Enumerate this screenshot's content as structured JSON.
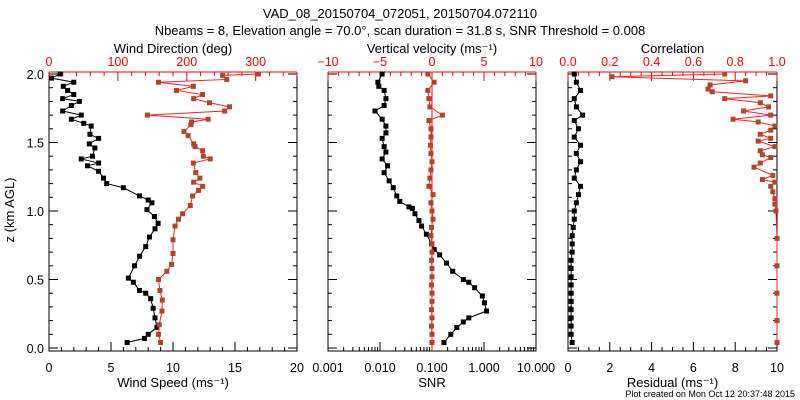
{
  "title": {
    "line1": "VAD_08_20150704_072051, 20150704.072110",
    "line2": "Nbeams = 8, Elevation angle = 70.0°, scan duration = 31.8 s, SNR Threshold = 0.008"
  },
  "footer": "Plot created on Mon Oct 12 20:37:48 2015",
  "y_axis_label": "z (km AGL)",
  "y_ticks": [
    "0.0",
    "0.5",
    "1.0",
    "1.5",
    "2.0"
  ],
  "colors": {
    "primary": "#000000",
    "secondary_axis": "#ff0000",
    "secondary_marker": "#b4432c",
    "secondary_line": "#ff2020"
  },
  "chart_data": [
    {
      "type": "line",
      "xlabel": "Wind Speed (ms⁻¹)",
      "x_ticks": [
        "0",
        "5",
        "10",
        "15",
        "20"
      ],
      "xlim": [
        0,
        20
      ],
      "top_label": "Wind Direction (deg)",
      "top_ticks": [
        "0",
        "100",
        "200",
        "300"
      ],
      "top_lim": [
        0,
        360
      ],
      "ylim": [
        0,
        2.0
      ],
      "series": [
        {
          "name": "Wind Speed",
          "axis": "bottom",
          "z": [
            0.04,
            0.07,
            0.1,
            0.15,
            0.22,
            0.29,
            0.36,
            0.4,
            0.42,
            0.48,
            0.51,
            0.6,
            0.67,
            0.74,
            0.81,
            0.87,
            0.91,
            0.96,
            1.01,
            1.06,
            1.08,
            1.11,
            1.17,
            1.2,
            1.24,
            1.29,
            1.33,
            1.35,
            1.38,
            1.4,
            1.46,
            1.49,
            1.53,
            1.56,
            1.62,
            1.64,
            1.67,
            1.7,
            1.73,
            1.77,
            1.8,
            1.82,
            1.85,
            1.88,
            1.91,
            1.94,
            1.97,
            2.0
          ],
          "values": [
            6.3,
            7.7,
            8.0,
            8.7,
            8.55,
            8.4,
            8.2,
            7.8,
            7.3,
            6.8,
            6.4,
            6.9,
            7.3,
            7.8,
            8.1,
            8.55,
            8.8,
            8.5,
            7.9,
            8.3,
            8.0,
            7.3,
            6.0,
            4.65,
            4.4,
            4.0,
            3.1,
            4.0,
            2.6,
            3.5,
            3.7,
            3.25,
            4.0,
            3.3,
            3.4,
            2.8,
            1.8,
            2.6,
            1.1,
            1.8,
            2.45,
            1.1,
            2.0,
            1.5,
            1.15,
            2.0,
            0.2,
            0.9
          ]
        },
        {
          "name": "Wind Direction",
          "axis": "top",
          "z": [
            0.04,
            0.1,
            0.17,
            0.27,
            0.35,
            0.42,
            0.5,
            0.56,
            0.61,
            0.69,
            0.79,
            0.89,
            0.94,
            0.98,
            1.04,
            1.11,
            1.15,
            1.18,
            1.21,
            1.24,
            1.28,
            1.35,
            1.38,
            1.4,
            1.44,
            1.47,
            1.49,
            1.55,
            1.58,
            1.63,
            1.65,
            1.67,
            1.7,
            1.73,
            1.76,
            1.79,
            1.82,
            1.85,
            1.88,
            1.91,
            1.94,
            1.96,
            1.99,
            2.0
          ],
          "values": [
            162,
            159,
            160,
            164,
            164.5,
            161,
            159,
            171,
            178,
            180,
            180,
            183,
            188,
            194,
            205,
            208.5,
            217,
            223,
            210,
            219,
            213,
            209.5,
            234,
            224,
            223,
            212,
            210,
            202,
            196,
            206,
            207,
            231,
            143,
            255,
            262,
            233,
            210,
            223,
            185,
            209.5,
            159,
            258,
            252,
            304
          ]
        }
      ]
    },
    {
      "type": "line",
      "xlabel": "SNR",
      "x_ticks": [
        "0.001",
        "0.010",
        "0.100",
        "1.000",
        "10.000"
      ],
      "xscale": "log",
      "xlim": [
        0.001,
        10
      ],
      "top_label": "Vertical velocity (ms⁻¹)",
      "top_ticks": [
        "−10",
        "−5",
        "0",
        "5",
        "10"
      ],
      "top_lim": [
        -10,
        10
      ],
      "ylim": [
        0,
        2.0
      ],
      "series": [
        {
          "name": "SNR",
          "axis": "bottom",
          "z": [
            0.04,
            0.1,
            0.15,
            0.19,
            0.22,
            0.27,
            0.33,
            0.38,
            0.44,
            0.48,
            0.5,
            0.56,
            0.62,
            0.68,
            0.72,
            0.76,
            0.83,
            0.89,
            0.93,
            0.98,
            1.02,
            1.03,
            1.07,
            1.11,
            1.17,
            1.22,
            1.28,
            1.33,
            1.38,
            1.43,
            1.47,
            1.53,
            1.57,
            1.62,
            1.67,
            1.73,
            1.77,
            1.82,
            1.88,
            1.91,
            1.94,
            2.0
          ],
          "values": [
            0.17,
            0.23,
            0.3,
            0.4,
            0.51,
            1.12,
            1.02,
            0.93,
            0.66,
            0.51,
            0.4,
            0.25,
            0.19,
            0.14,
            0.11,
            0.098,
            0.078,
            0.063,
            0.056,
            0.047,
            0.042,
            0.036,
            0.024,
            0.021,
            0.018,
            0.015,
            0.012,
            0.014,
            0.011,
            0.013,
            0.012,
            0.011,
            0.013,
            0.013,
            0.011,
            0.008,
            0.012,
            0.013,
            0.012,
            0.0095,
            0.0091,
            0.011
          ]
        },
        {
          "name": "Vertical velocity",
          "axis": "top",
          "z": [
            0.04,
            0.1,
            0.16,
            0.22,
            0.28,
            0.34,
            0.4,
            0.46,
            0.52,
            0.58,
            0.64,
            0.7,
            0.76,
            0.82,
            0.88,
            0.94,
            1.0,
            1.06,
            1.12,
            1.18,
            1.24,
            1.3,
            1.36,
            1.42,
            1.48,
            1.54,
            1.6,
            1.66,
            1.7,
            1.76,
            1.82,
            1.88,
            1.94,
            2.0
          ],
          "values": [
            0.0,
            0.0,
            -0.05,
            0.0,
            -0.05,
            0.0,
            0.0,
            -0.05,
            0.0,
            0.0,
            -0.05,
            0.0,
            0.0,
            -0.1,
            -0.05,
            0.1,
            0.0,
            -0.1,
            0.1,
            -0.3,
            -0.2,
            -0.1,
            0.0,
            -0.1,
            -0.15,
            -0.1,
            -0.1,
            -0.3,
            1.0,
            -0.2,
            -0.3,
            -0.4,
            0.2,
            -0.4
          ]
        }
      ]
    },
    {
      "type": "line",
      "xlabel": "Residual (ms⁻¹)",
      "x_ticks": [
        "0",
        "2",
        "4",
        "6",
        "8",
        "10"
      ],
      "xlim": [
        0,
        10
      ],
      "top_label": "Correlation",
      "top_ticks": [
        "0.0",
        "0.2",
        "0.4",
        "0.6",
        "0.8",
        "1.0"
      ],
      "top_lim": [
        0,
        1
      ],
      "ylim": [
        0,
        2.0
      ],
      "series": [
        {
          "name": "Residual",
          "axis": "bottom",
          "z": [
            0.04,
            0.1,
            0.16,
            0.22,
            0.28,
            0.34,
            0.4,
            0.46,
            0.52,
            0.58,
            0.64,
            0.7,
            0.76,
            0.82,
            0.88,
            0.94,
            1.0,
            1.06,
            1.12,
            1.18,
            1.24,
            1.3,
            1.36,
            1.42,
            1.48,
            1.54,
            1.6,
            1.66,
            1.7,
            1.76,
            1.82,
            1.88,
            1.94,
            2.0
          ],
          "values": [
            0.2,
            0.15,
            0.15,
            0.15,
            0.15,
            0.15,
            0.15,
            0.15,
            0.15,
            0.15,
            0.15,
            0.2,
            0.2,
            0.2,
            0.25,
            0.3,
            0.3,
            0.4,
            0.5,
            0.6,
            0.3,
            0.4,
            0.6,
            0.4,
            0.6,
            0.3,
            0.5,
            0.3,
            0.7,
            0.4,
            0.3,
            0.6,
            0.4,
            0.3
          ]
        },
        {
          "name": "Correlation",
          "axis": "top",
          "z": [
            0.04,
            0.2,
            0.4,
            0.6,
            0.8,
            1.0,
            1.05,
            1.09,
            1.14,
            1.18,
            1.21,
            1.23,
            1.26,
            1.32,
            1.35,
            1.39,
            1.41,
            1.44,
            1.47,
            1.51,
            1.53,
            1.56,
            1.59,
            1.62,
            1.65,
            1.67,
            1.7,
            1.73,
            1.76,
            1.79,
            1.82,
            1.84,
            1.87,
            1.89,
            1.92,
            1.95,
            1.98,
            2.0
          ],
          "values": [
            1.0,
            1.0,
            1.0,
            1.0,
            1.0,
            0.995,
            0.99,
            0.99,
            0.98,
            0.97,
            0.99,
            0.93,
            0.98,
            0.89,
            0.92,
            0.97,
            0.93,
            0.92,
            0.99,
            0.91,
            0.97,
            0.92,
            0.97,
            0.99,
            0.91,
            0.79,
            0.97,
            0.84,
            0.96,
            0.92,
            0.75,
            0.97,
            0.69,
            0.67,
            0.68,
            0.85,
            0.21,
            0.75
          ]
        }
      ]
    }
  ]
}
